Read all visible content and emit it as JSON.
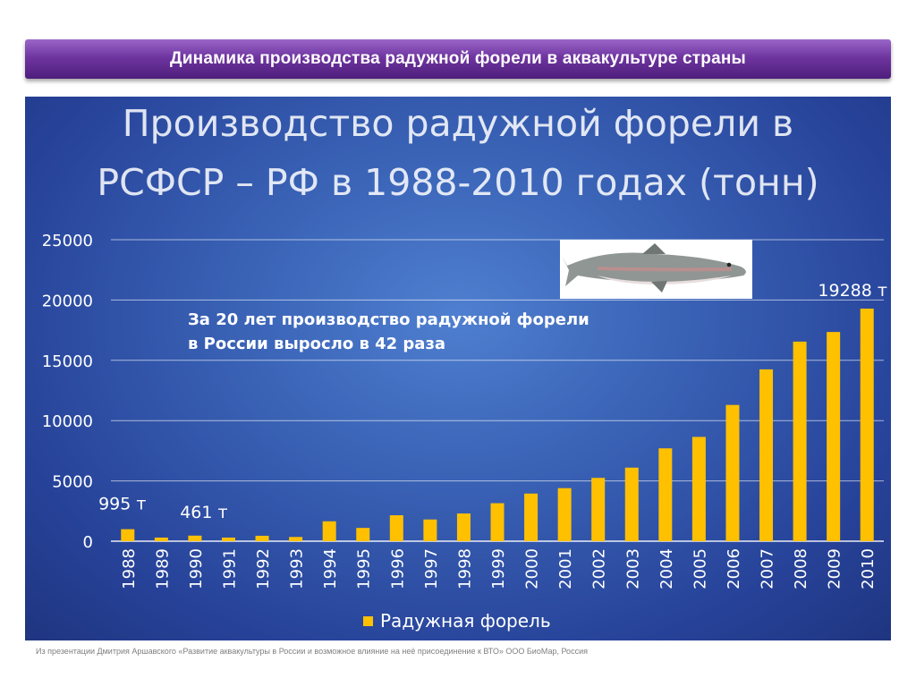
{
  "banner": {
    "title": "Динамика производства радужной форели в аквакультуре страны"
  },
  "chart_data": {
    "type": "bar",
    "title_line1": "Производство радужной форели в",
    "title_line2": "РСФСР – РФ в 1988-2010 годах (тонн)",
    "categories": [
      "1988",
      "1989",
      "1990",
      "1991",
      "1992",
      "1993",
      "1994",
      "1995",
      "1996",
      "1997",
      "1998",
      "1999",
      "2000",
      "2001",
      "2002",
      "2003",
      "2004",
      "2005",
      "2006",
      "2007",
      "2008",
      "2009",
      "2010"
    ],
    "series": [
      {
        "name": "Радужная форель",
        "color": "#ffc000",
        "values": [
          995,
          300,
          461,
          300,
          450,
          350,
          1650,
          1100,
          2150,
          1800,
          2300,
          3150,
          3950,
          4400,
          5250,
          6100,
          7700,
          8650,
          11300,
          14250,
          16550,
          17350,
          19288
        ]
      }
    ],
    "ylim": [
      0,
      25000
    ],
    "yticks": [
      "0",
      "5000",
      "10000",
      "15000",
      "20000",
      "25000"
    ],
    "grid": true,
    "legend": "bottom",
    "data_labels": {
      "first": "995 т",
      "third": "461 т",
      "last": "19288 т"
    },
    "annotation": {
      "line1": "За 20 лет производство радужной форели",
      "line2": "в России выросло в 42 раза"
    },
    "image": "trout-fish-illustration"
  },
  "footer": {
    "source": "Из презентации Дмитрия Аршавского «Развитие аквакультуры в России и возможное влияние на неё присоединение к ВТО» ООО БиоМар, Россия"
  }
}
